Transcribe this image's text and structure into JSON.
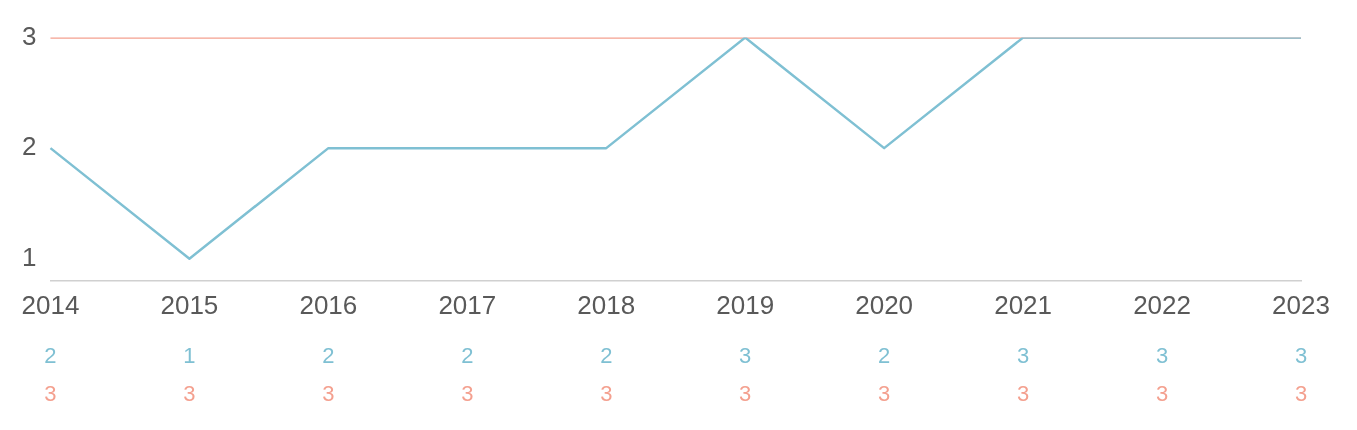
{
  "chart_data": {
    "type": "line",
    "categories": [
      "2014",
      "2015",
      "2016",
      "2017",
      "2018",
      "2019",
      "2020",
      "2021",
      "2022",
      "2023"
    ],
    "series": [
      {
        "color": "#7fc0d3",
        "values": [
          2,
          1,
          2,
          2,
          2,
          3,
          2,
          3,
          3,
          3
        ]
      },
      {
        "color": "#f4a08f",
        "values": [
          3,
          3,
          3,
          3,
          3,
          3,
          3,
          3,
          3,
          3
        ]
      }
    ],
    "ylim": [
      0.8,
      3
    ],
    "yticks": [
      1,
      2,
      3
    ],
    "grid": false,
    "legend": false,
    "marker": "none",
    "line_style": "solid",
    "data_labels": true
  }
}
